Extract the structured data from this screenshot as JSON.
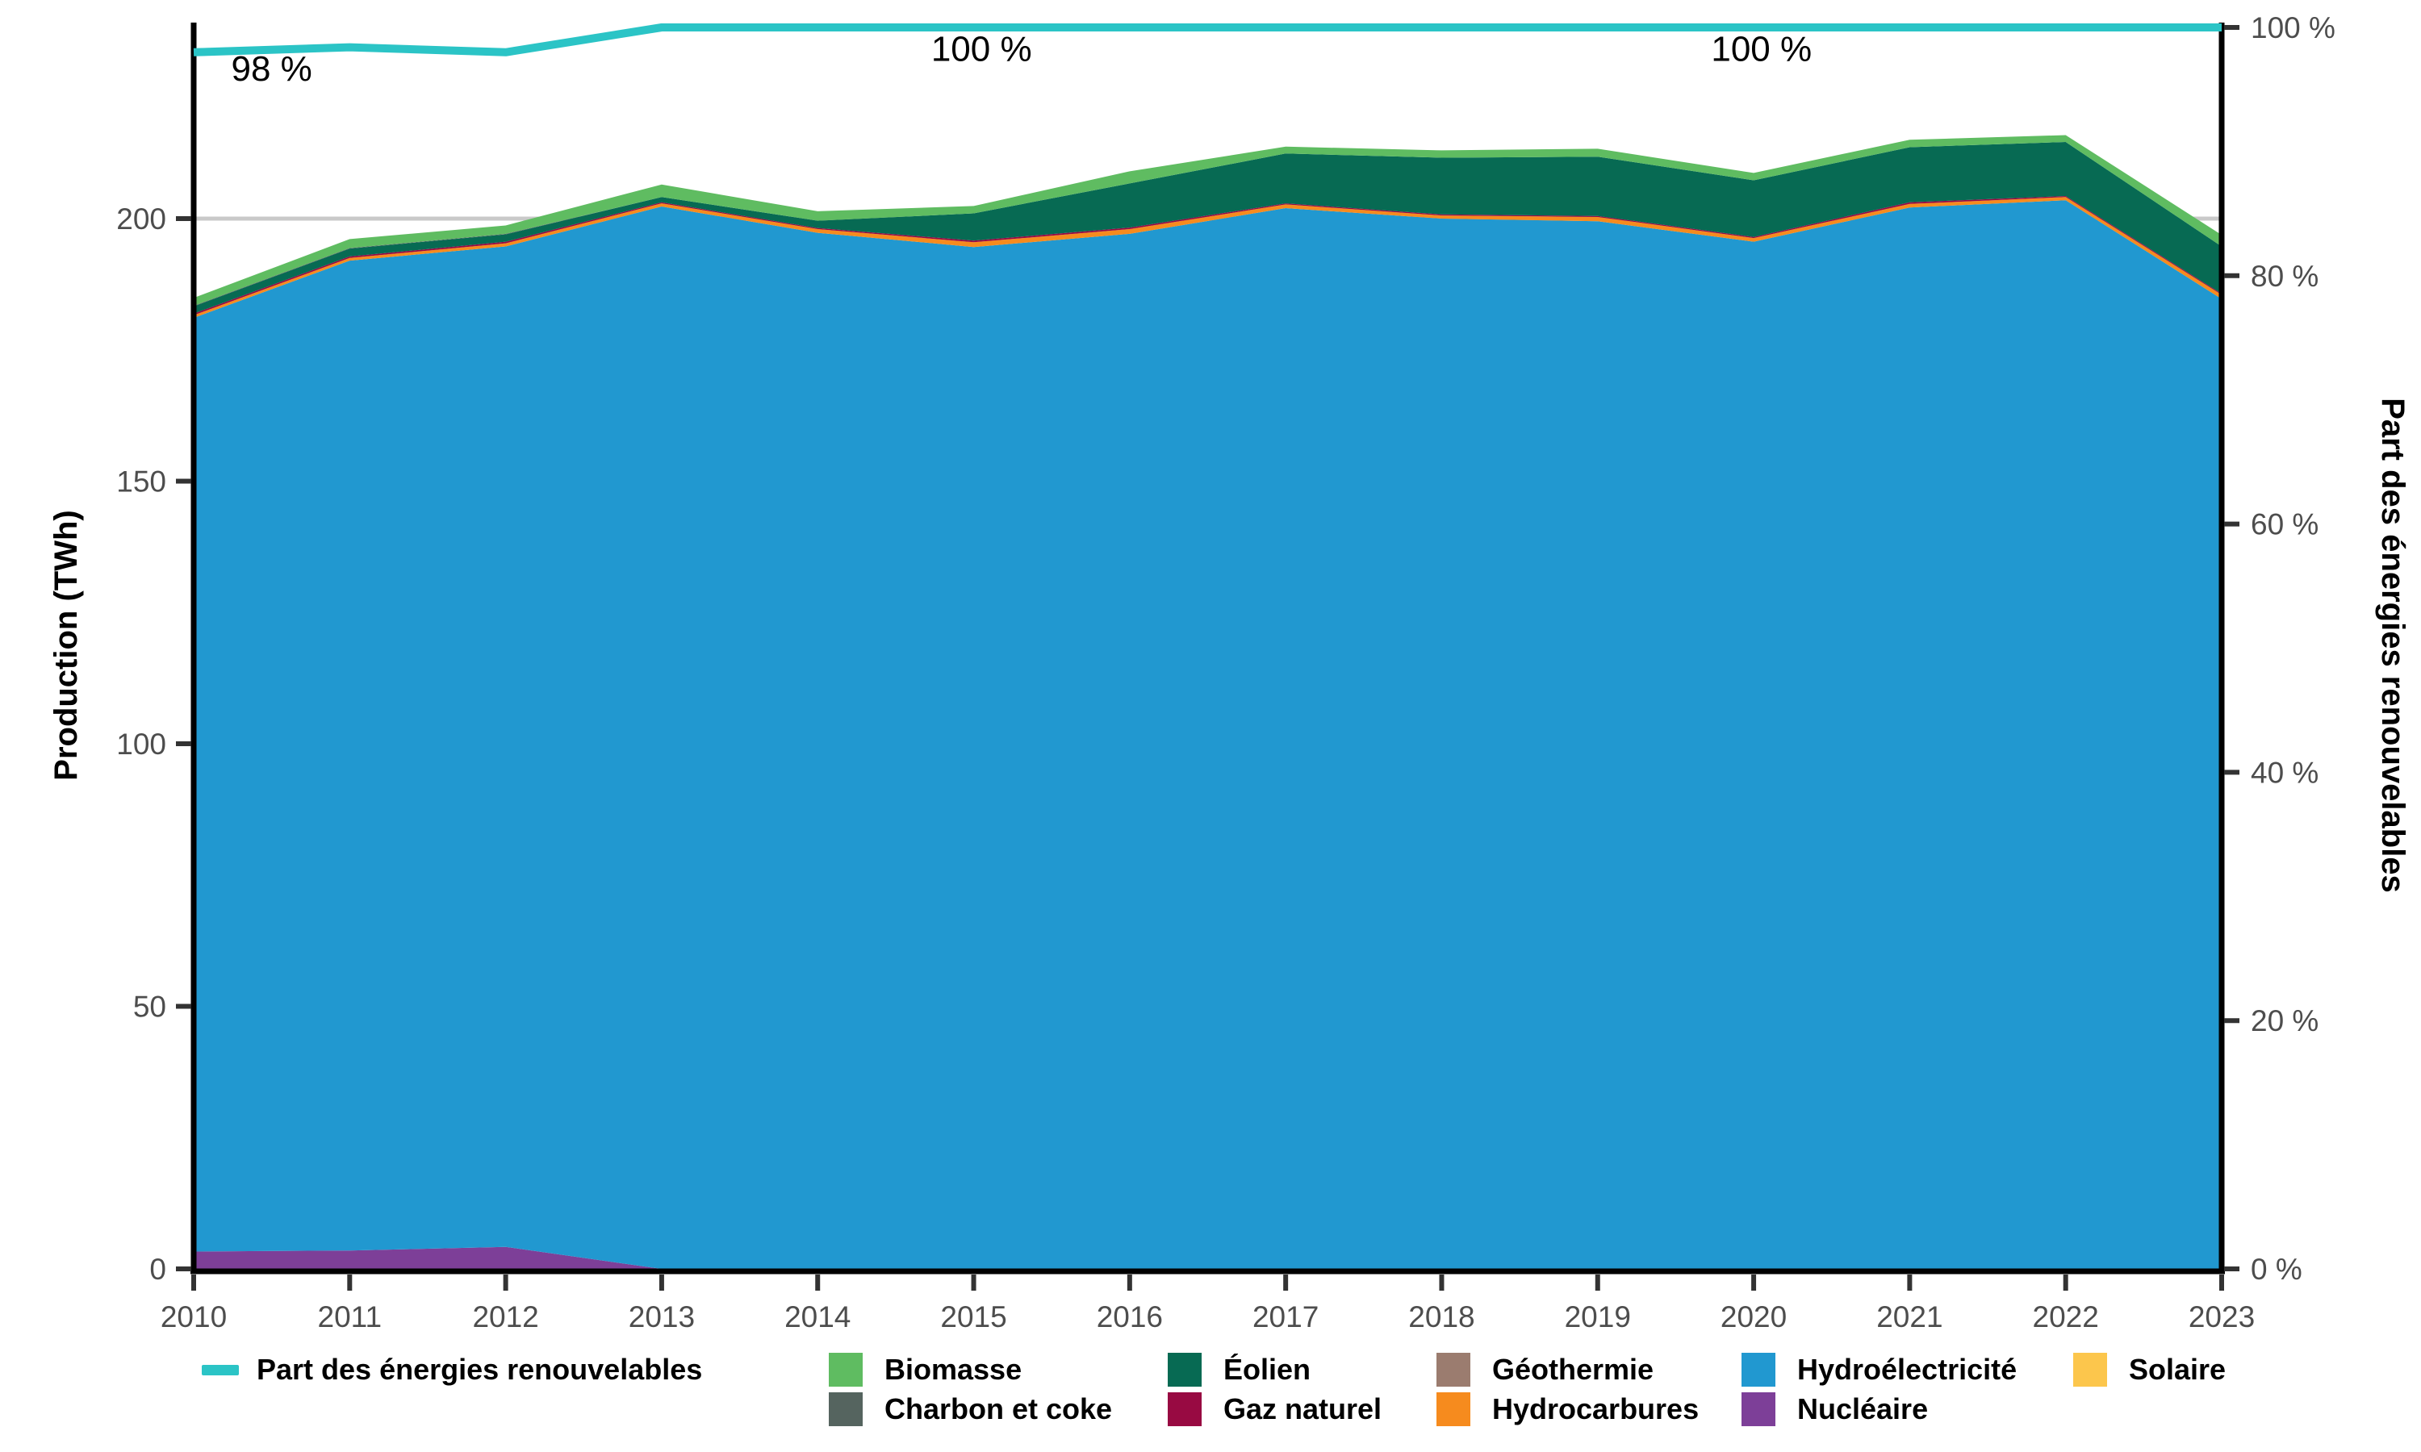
{
  "chart_data": {
    "type": "area",
    "title": "",
    "x": [
      2010,
      2011,
      2012,
      2013,
      2014,
      2015,
      2016,
      2017,
      2018,
      2019,
      2020,
      2021,
      2022,
      2023
    ],
    "y_left": {
      "label": "Production (TWh)",
      "ticks": [
        {
          "v": 0,
          "label": "0"
        },
        {
          "v": 50,
          "label": "50"
        },
        {
          "v": 100,
          "label": "100"
        },
        {
          "v": 150,
          "label": "150"
        },
        {
          "v": 200,
          "label": "200"
        }
      ],
      "lim": [
        0,
        237
      ]
    },
    "y_right": {
      "label": "Part des énergies renouvelables",
      "ticks": [
        {
          "v": 0,
          "label": "0 %"
        },
        {
          "v": 20,
          "label": "20 %"
        },
        {
          "v": 40,
          "label": "40 %"
        },
        {
          "v": 60,
          "label": "60 %"
        },
        {
          "v": 80,
          "label": "80 %"
        },
        {
          "v": 100,
          "label": "100 %"
        }
      ],
      "lim": [
        0,
        101
      ]
    },
    "gridline_twh": 200,
    "grid_color": "#c9c9c9",
    "axis_color": "#000000",
    "tick_label_color": "#4d4d4d",
    "series": [
      {
        "name": "Solaire",
        "color": "#fcc64c",
        "values": [
          0,
          0,
          0,
          0,
          0,
          0,
          0,
          0,
          0,
          0,
          0,
          0,
          0,
          0
        ]
      },
      {
        "name": "Nucléaire",
        "color": "#7d3f98",
        "values": [
          3.3,
          3.5,
          4.2,
          0,
          0,
          0,
          0,
          0,
          0,
          0,
          0,
          0,
          0,
          0
        ]
      },
      {
        "name": "Hydroélectricité",
        "color": "#2198d0",
        "values": [
          177.8,
          188.5,
          190.5,
          202.3,
          197.3,
          194.6,
          197.1,
          202.0,
          200.0,
          199.5,
          195.6,
          202.1,
          203.5,
          184.7
        ]
      },
      {
        "name": "Hydrocarbures",
        "color": "#f68b1e",
        "values": [
          0.5,
          0.5,
          0.6,
          0.6,
          0.7,
          0.9,
          0.9,
          0.7,
          0.6,
          0.8,
          0.7,
          0.7,
          0.6,
          0.8
        ]
      },
      {
        "name": "Géothermie",
        "color": "#9b7c6f",
        "values": [
          0,
          0,
          0,
          0,
          0,
          0,
          0,
          0,
          0,
          0,
          0,
          0,
          0,
          0
        ]
      },
      {
        "name": "Gaz naturel",
        "color": "#980a42",
        "values": [
          0.3,
          0.3,
          0.3,
          0.2,
          0.2,
          0.3,
          0.3,
          0.2,
          0.2,
          0.2,
          0.2,
          0.3,
          0.2,
          0.2
        ]
      },
      {
        "name": "Éolien",
        "color": "#076a53",
        "values": [
          1.4,
          1.5,
          1.4,
          1.0,
          1.4,
          5.2,
          8.4,
          9.5,
          10.8,
          11.3,
          10.8,
          10.5,
          10.3,
          9.0
        ]
      },
      {
        "name": "Charbon et coke",
        "color": "#55645f",
        "values": [
          0.1,
          0.1,
          0.1,
          0,
          0,
          0,
          0,
          0,
          0,
          0,
          0,
          0,
          0,
          0
        ]
      },
      {
        "name": "Biomasse",
        "color": "#5fbc61",
        "values": [
          1.5,
          1.7,
          1.6,
          2.4,
          1.8,
          1.4,
          2.3,
          1.3,
          1.4,
          1.5,
          1.4,
          1.4,
          1.3,
          2.2
        ]
      }
    ],
    "line_series": {
      "name": "Part des énergies renouvelables",
      "color": "#2bc4c6",
      "values_pct": [
        98.0,
        98.4,
        98.0,
        100,
        100,
        100,
        100,
        100,
        100,
        100,
        100,
        100,
        100,
        100
      ]
    },
    "annotations": [
      {
        "text": "98 %",
        "year": 2010.5,
        "pct": 95.7
      },
      {
        "text": "100 %",
        "year": 2015.05,
        "pct": 97.3
      },
      {
        "text": "100 %",
        "year": 2020.05,
        "pct": 97.3
      }
    ],
    "legend_position": "bottom"
  }
}
